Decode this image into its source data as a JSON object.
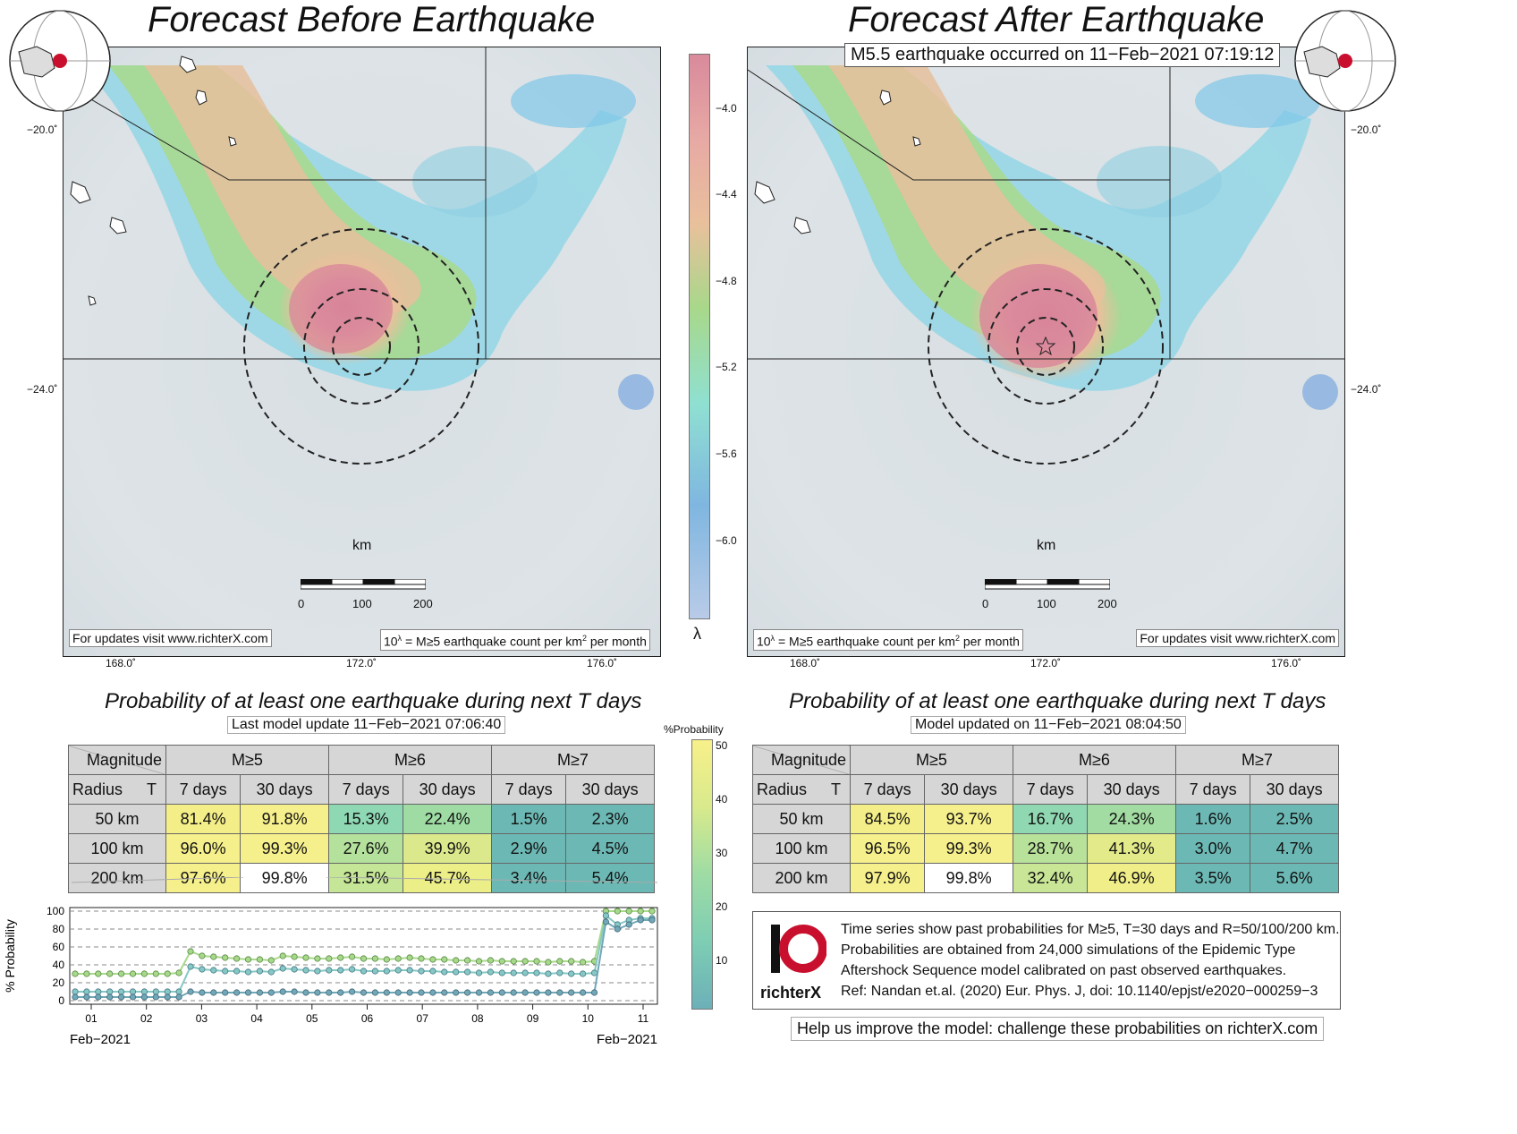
{
  "left_title": "Forecast Before Earthquake",
  "right_title": "Forecast After Earthquake",
  "event_label": "M5.5 earthquake occurred on 11−Feb−2021 07:19:12",
  "lat_ticks": [
    "−20.0˚",
    "−24.0˚"
  ],
  "lon_ticks": [
    "168.0˚",
    "172.0˚",
    "176.0˚"
  ],
  "km_label": "km",
  "scale_ticks": [
    "0",
    "100",
    "200"
  ],
  "updates_label": "For updates visit www.richterX.com",
  "units_label_main": "10",
  "units_label_sup": "λ",
  "units_label_rest": " = M≥5 earthquake count per km",
  "units_label_sq": "2",
  "units_label_end": " per month",
  "colorbar": {
    "ticks": [
      "−4.0",
      "−4.4",
      "−4.8",
      "−5.2",
      "−5.6",
      "−6.0"
    ],
    "label": "λ",
    "colors": [
      "#d98a9c",
      "#e9b89a",
      "#a8d88a",
      "#8fe0d2",
      "#7fb6e0",
      "#b9cbe8"
    ]
  },
  "prob_title": "Probability of at least one earthquake during next T days",
  "left_update": "Last model update 11−Feb−2021 07:06:40",
  "right_update": "Model updated on 11−Feb−2021 08:04:50",
  "prob_colorbar": {
    "label": "%Probability",
    "ticks": [
      "50",
      "40",
      "30",
      "20",
      "10"
    ]
  },
  "table_headers": {
    "magnitude": "Magnitude",
    "radius": "Radius",
    "t": "T",
    "mags": [
      "M≥5",
      "M≥6",
      "M≥7"
    ],
    "periods": [
      "7 days",
      "30 days",
      "7 days",
      "30 days",
      "7 days",
      "30 days"
    ]
  },
  "left_table": [
    {
      "radius": "50 km",
      "values": [
        "81.4%",
        "91.8%",
        "15.3%",
        "22.4%",
        "1.5%",
        "2.3%"
      ]
    },
    {
      "radius": "100 km",
      "values": [
        "96.0%",
        "99.3%",
        "27.6%",
        "39.9%",
        "2.9%",
        "4.5%"
      ]
    },
    {
      "radius": "200 km",
      "values": [
        "97.6%",
        "99.8%",
        "31.5%",
        "45.7%",
        "3.4%",
        "5.4%"
      ]
    }
  ],
  "right_table": [
    {
      "radius": "50 km",
      "values": [
        "84.5%",
        "93.7%",
        "16.7%",
        "24.3%",
        "1.6%",
        "2.5%"
      ]
    },
    {
      "radius": "100 km",
      "values": [
        "96.5%",
        "99.3%",
        "28.7%",
        "41.3%",
        "3.0%",
        "4.7%"
      ]
    },
    {
      "radius": "200 km",
      "values": [
        "97.9%",
        "99.8%",
        "32.4%",
        "46.9%",
        "3.5%",
        "5.6%"
      ]
    }
  ],
  "cell_colors": {
    "left": [
      [
        "#f4ee88",
        "#f6f08c",
        "#8ed8b4",
        "#9edca4",
        "#6cb8b4",
        "#6cb8b4"
      ],
      [
        "#f6f08c",
        "#f6f08c",
        "#b4e29c",
        "#dce88c",
        "#6cb8b4",
        "#6cb8b4"
      ],
      [
        "#f6f08c",
        "#ffffff",
        "#c4e696",
        "#ecee88",
        "#6cb8b4",
        "#6cb8b4"
      ]
    ],
    "right": [
      [
        "#f4ee88",
        "#f6f08c",
        "#90d8b2",
        "#a2dca2",
        "#6cb8b4",
        "#6cb8b4"
      ],
      [
        "#f6f08c",
        "#f6f08c",
        "#b8e29a",
        "#e2ea8a",
        "#6cb8b4",
        "#6cb8b4"
      ],
      [
        "#f6f08c",
        "#ffffff",
        "#c8e696",
        "#f0ee88",
        "#6cb8b4",
        "#6cb8b4"
      ]
    ]
  },
  "chart_data": {
    "type": "line",
    "ylabel": "% Probability",
    "ylim": [
      0,
      100
    ],
    "yticks": [
      "0",
      "20",
      "40",
      "60",
      "80",
      "100"
    ],
    "xticks": [
      "01",
      "02",
      "03",
      "04",
      "05",
      "06",
      "07",
      "08",
      "09",
      "10",
      "11"
    ],
    "xlabel_left": "Feb−2021",
    "xlabel_right": "Feb−2021",
    "series": [
      {
        "values": [
          30,
          30,
          30,
          30,
          30,
          30,
          30,
          30,
          30,
          31,
          55,
          50,
          49,
          48,
          47,
          46,
          46,
          45,
          50,
          49,
          48,
          47,
          47,
          48,
          49,
          47,
          47,
          46,
          47,
          48,
          47,
          46,
          46,
          45,
          45,
          44,
          45,
          44,
          44,
          44,
          44,
          43,
          44,
          44,
          43,
          44,
          100,
          100,
          100,
          100,
          100
        ]
      },
      {
        "values": [
          10,
          10,
          10,
          10,
          10,
          10,
          10,
          10,
          10,
          10,
          38,
          35,
          34,
          33,
          33,
          32,
          33,
          32,
          36,
          35,
          34,
          33,
          34,
          34,
          35,
          33,
          33,
          33,
          34,
          34,
          33,
          33,
          32,
          32,
          32,
          31,
          32,
          31,
          31,
          31,
          31,
          30,
          31,
          30,
          30,
          31,
          95,
          85,
          90,
          92,
          92
        ]
      },
      {
        "values": [
          4,
          4,
          4,
          4,
          4,
          4,
          4,
          4,
          4,
          4,
          10,
          9,
          9,
          9,
          9,
          9,
          9,
          9,
          10,
          10,
          9,
          9,
          9,
          9,
          10,
          9,
          9,
          9,
          9,
          9,
          9,
          9,
          9,
          9,
          9,
          9,
          9,
          9,
          9,
          9,
          9,
          9,
          9,
          9,
          9,
          9,
          88,
          80,
          85,
          90,
          90
        ]
      }
    ]
  },
  "info_text": [
    "Time series show past probabilities for M≥5, T=30 days and R=50/100/200 km.",
    "Probabilities are obtained from 24,000 simulations of the Epidemic Type",
    "Aftershock Sequence model calibrated on past observed earthquakes.",
    "Ref: Nandan et.al. (2020) Eur. Phys. J, doi: 10.1140/epjst/e2020−000259−3"
  ],
  "logo_text": "richterX",
  "help_text": "Help us improve the model: challenge these probabilities on richterX.com"
}
